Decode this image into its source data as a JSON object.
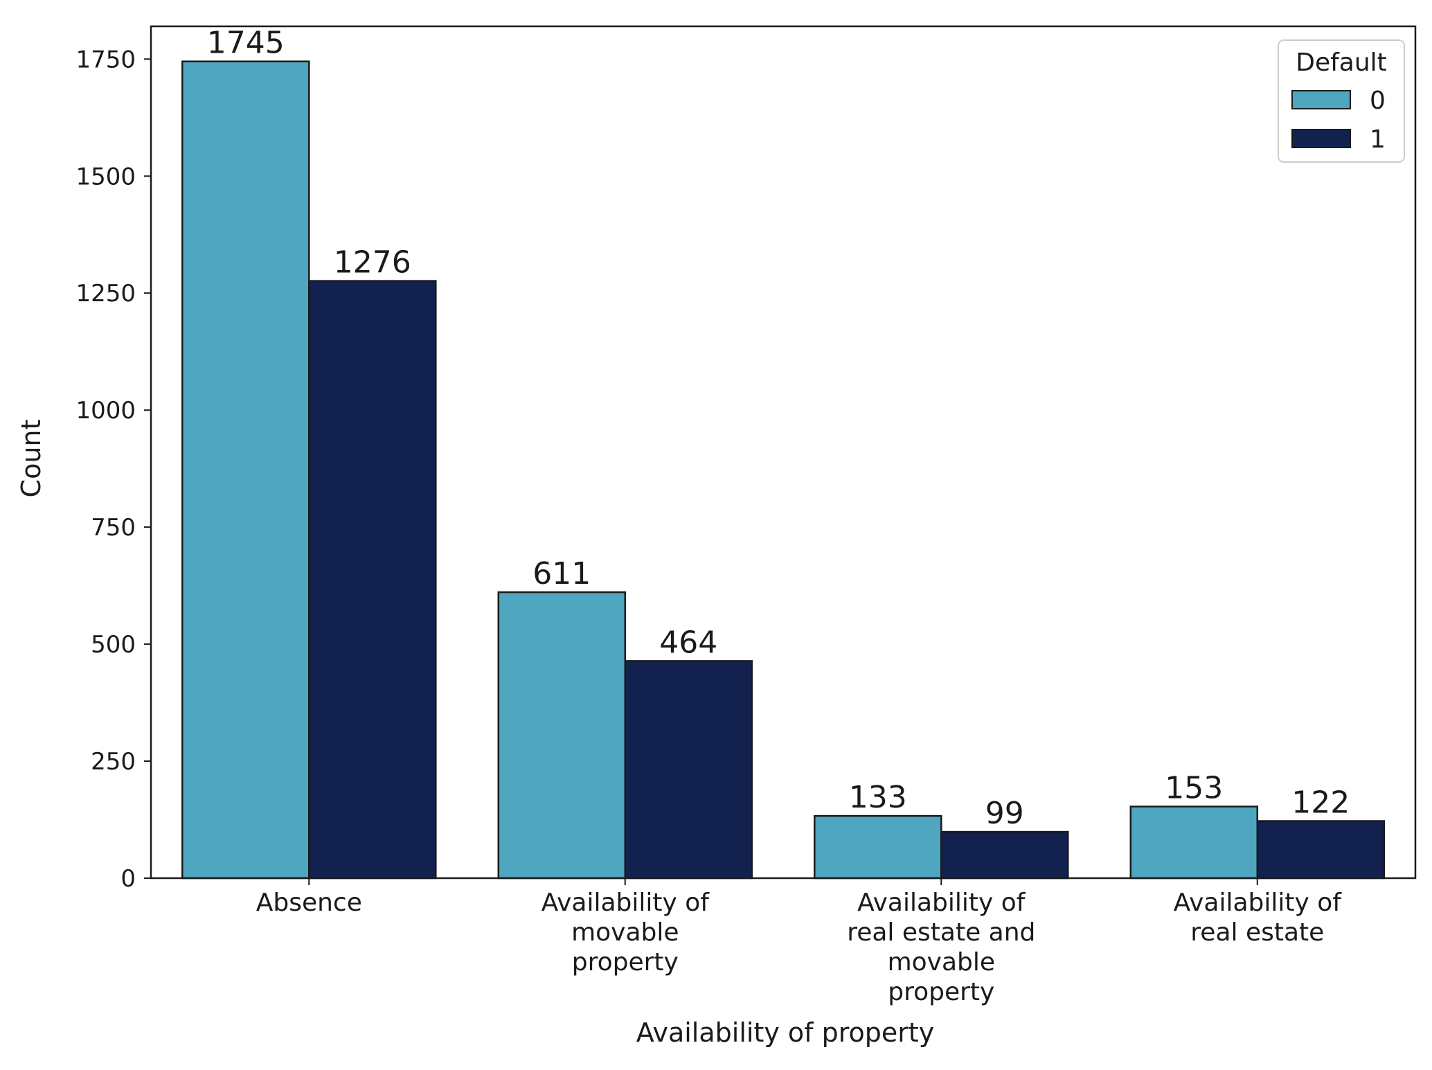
{
  "chart_data": {
    "type": "bar",
    "title": "",
    "xlabel": "Availability of property",
    "ylabel": "Count",
    "ylim": [
      0,
      1820
    ],
    "yticks": [
      0,
      250,
      500,
      750,
      1000,
      1250,
      1500,
      1750
    ],
    "grid": false,
    "categories": [
      "Absence",
      "Availability of movable property",
      "Availability of real estate and movable property",
      "Availability of real estate"
    ],
    "category_label_lines": [
      [
        "Absence"
      ],
      [
        "Availability of",
        "movable",
        "property"
      ],
      [
        "Availability of",
        "real estate and",
        "movable",
        "property"
      ],
      [
        "Availability of",
        "real estate"
      ]
    ],
    "legend": {
      "title": "Default",
      "position": "top-right"
    },
    "series": [
      {
        "name": "0",
        "color": "#4fa6c0",
        "values": [
          1745,
          611,
          133,
          153
        ]
      },
      {
        "name": "1",
        "color": "#13214f",
        "values": [
          1276,
          464,
          99,
          122
        ]
      }
    ]
  }
}
